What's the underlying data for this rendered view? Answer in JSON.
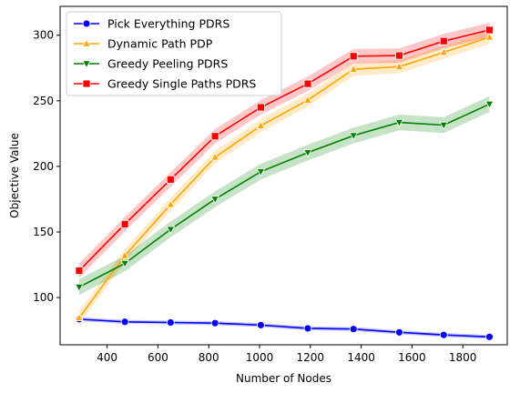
{
  "chart_data": {
    "type": "line",
    "title": "",
    "xlabel": "Number of Nodes",
    "ylabel": "Objective Value",
    "xlim": [
      215,
      1975
    ],
    "ylim": [
      64,
      322
    ],
    "xticks": [
      400,
      600,
      800,
      1000,
      1200,
      1400,
      1600,
      1800
    ],
    "yticks": [
      100,
      150,
      200,
      250,
      300
    ],
    "grid": false,
    "legend_position": "top-left",
    "x": [
      290,
      470,
      650,
      825,
      1005,
      1190,
      1370,
      1550,
      1725,
      1905
    ],
    "series": [
      {
        "name": "Pick Everything PDRS",
        "color": "#0000ff",
        "marker": "circle",
        "values": [
          83.5,
          81.5,
          81,
          80.5,
          79,
          76.5,
          76,
          73.5,
          71.5,
          70
        ],
        "band": 1.5
      },
      {
        "name": "Dynamic Path PDP",
        "color": "#ffa500",
        "marker": "triangle-up",
        "values": [
          84.5,
          132,
          171,
          207,
          231,
          250.5,
          274,
          276,
          287,
          298.5
        ],
        "band": 5
      },
      {
        "name": "Greedy Peeling PDRS",
        "color": "#008000",
        "marker": "triangle-down",
        "values": [
          108,
          126,
          152,
          175,
          196,
          210.5,
          223.5,
          233.5,
          231.5,
          247.5
        ],
        "band": 6
      },
      {
        "name": "Greedy Single Paths PDRS",
        "color": "#ff0000",
        "marker": "square",
        "values": [
          120.5,
          156,
          190,
          223,
          245,
          263,
          284,
          284.5,
          295.5,
          304
        ],
        "band": 5.5
      }
    ]
  }
}
